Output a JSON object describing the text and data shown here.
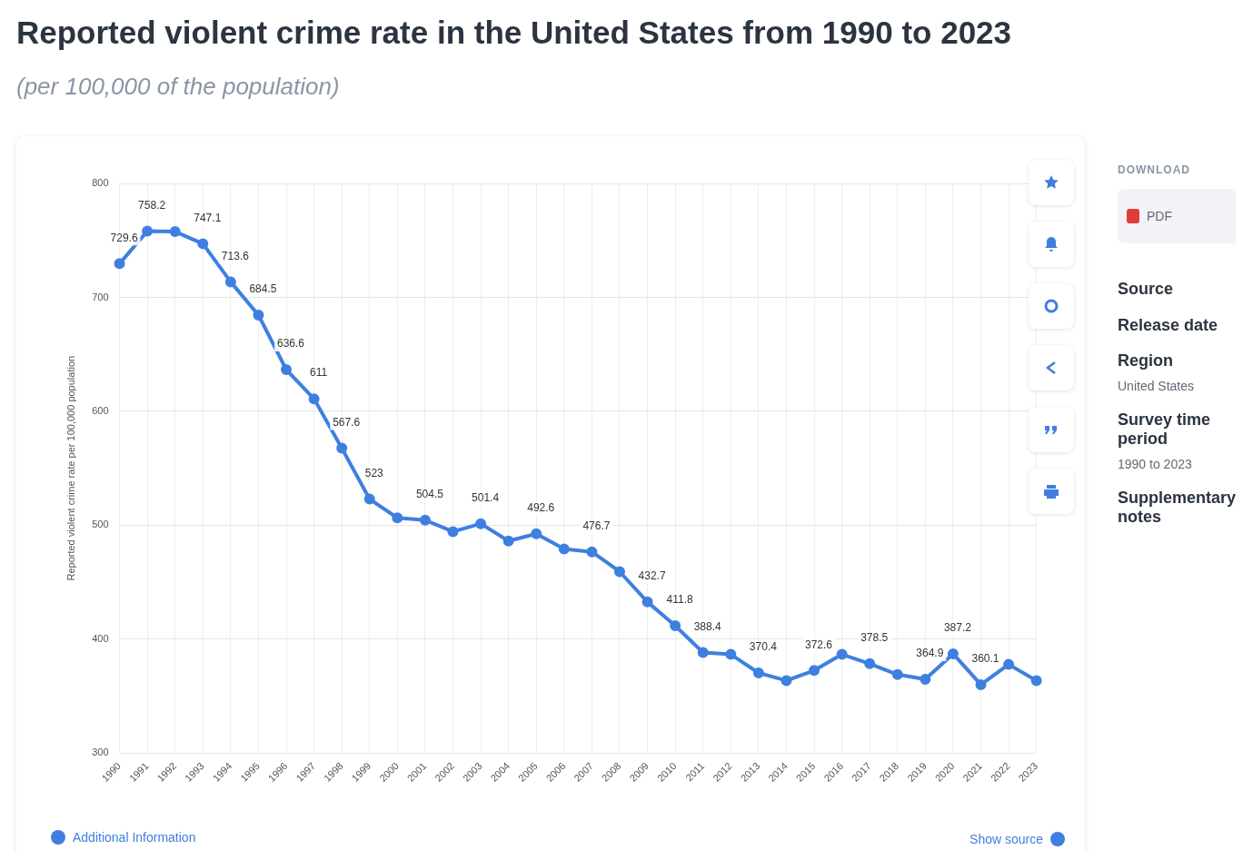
{
  "chart_data": {
    "type": "line",
    "title": "Reported violent crime rate in the United States from 1990 to 2023",
    "subtitle": "(per 100,000 of the population)",
    "ylabel": "Reported violent crime rate per 100,000 population",
    "categories": [
      "1990",
      "1991",
      "1992",
      "1993",
      "1994",
      "1995",
      "1996",
      "1997",
      "1998",
      "1999",
      "2000",
      "2001",
      "2002",
      "2003",
      "2004",
      "2005",
      "2006",
      "2007",
      "2008",
      "2009",
      "2010",
      "2011",
      "2012",
      "2013",
      "2014",
      "2015",
      "2016",
      "2017",
      "2018",
      "2019",
      "2020",
      "2021",
      "2022",
      "2023"
    ],
    "series": [
      {
        "color": "#3f7fe0",
        "values": [
          729.6,
          758.2,
          757.7,
          747.1,
          713.6,
          684.5,
          636.6,
          611,
          567.6,
          523,
          506.5,
          504.5,
          494.4,
          501.4,
          486.2,
          492.6,
          479.3,
          476.7,
          459.3,
          432.7,
          411.8,
          388.4,
          386.7,
          370.4,
          363.7,
          372.6,
          386.7,
          378.5,
          369,
          364.9,
          387.2,
          360.1,
          377.9,
          363.7
        ],
        "value_labels": [
          "729.6",
          "758.2",
          null,
          "747.1",
          "713.6",
          "684.5",
          "636.6",
          "611",
          "567.6",
          "523",
          null,
          "504.5",
          null,
          "501.4",
          null,
          "492.6",
          null,
          "476.7",
          null,
          "432.7",
          "411.8",
          "388.4",
          null,
          "370.4",
          null,
          "372.6",
          null,
          "378.5",
          null,
          "364.9",
          "387.2",
          "360.1",
          null,
          null
        ]
      }
    ],
    "ylim": [
      300,
      800
    ],
    "yticks": [
      300,
      400,
      500,
      600,
      700,
      800
    ],
    "grid": true,
    "legend": false,
    "marker": "circle",
    "line_style": "solid",
    "annotations": [
      "Additional Information",
      "Show source",
      "DOWNLOAD",
      "PDF",
      "Source",
      "Release date",
      "Region",
      "United States",
      "Survey time period",
      "1990 to 2023",
      "Supplementary notes"
    ]
  }
}
